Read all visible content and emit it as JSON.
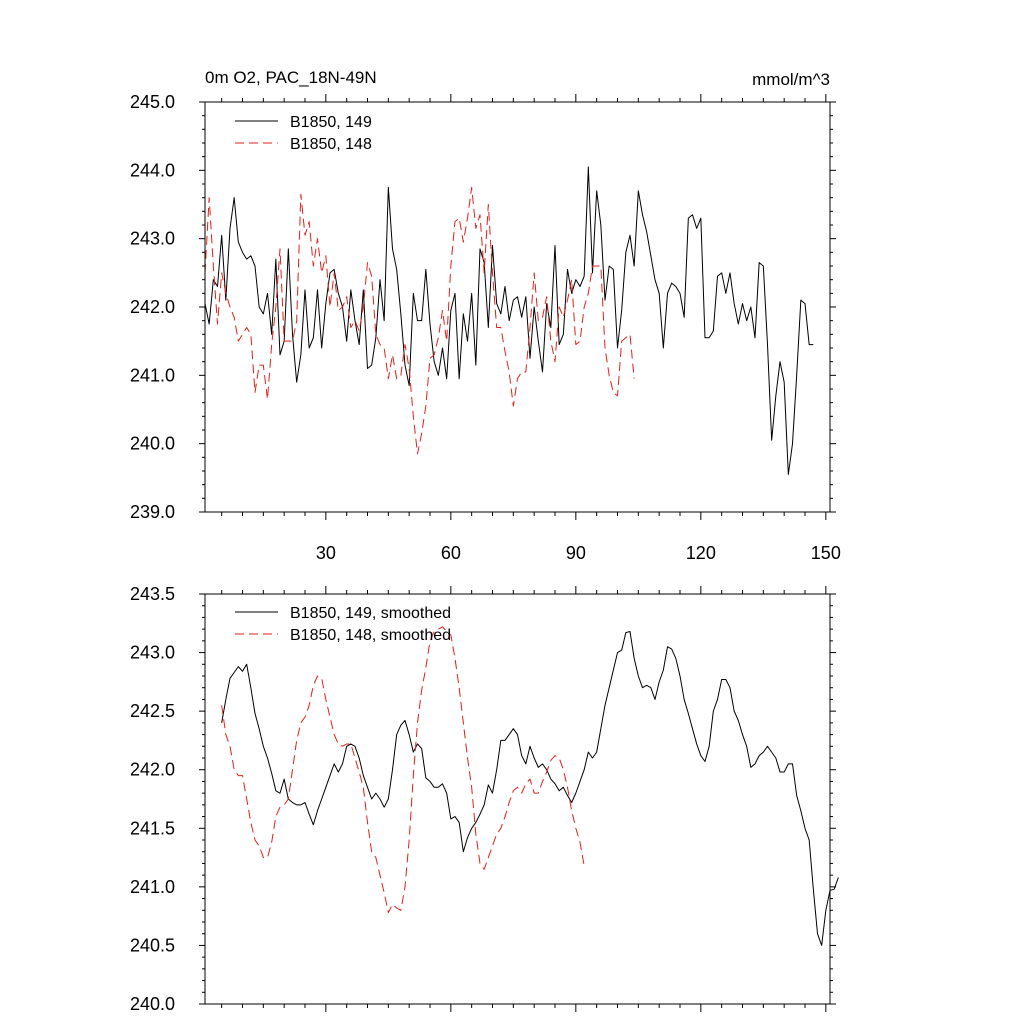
{
  "chart_data": [
    {
      "type": "line",
      "title_left": "0m O2, PAC_18N-49N",
      "title_right": "mmol/m^3",
      "xlim": [
        1,
        151
      ],
      "ylim": [
        239.0,
        245.0
      ],
      "xticks": [
        30,
        60,
        90,
        120,
        150
      ],
      "xtick_labels": [
        "30",
        "60",
        "90",
        "120",
        "150"
      ],
      "yticks": [
        239.0,
        240.0,
        241.0,
        242.0,
        243.0,
        244.0,
        245.0
      ],
      "ytick_labels": [
        "239.0",
        "240.0",
        "241.0",
        "242.0",
        "243.0",
        "244.0",
        "245.0"
      ],
      "legend": "top-left",
      "grid": false,
      "series": [
        {
          "name": "B1850, 149",
          "color": "#000000",
          "dash": "solid",
          "x_start": 1,
          "values": [
            242.05,
            241.75,
            242.4,
            242.3,
            243.05,
            242.1,
            243.15,
            243.6,
            242.95,
            242.8,
            242.7,
            242.75,
            242.6,
            242.0,
            241.9,
            242.2,
            241.6,
            242.7,
            241.3,
            241.5,
            242.85,
            241.6,
            240.9,
            241.3,
            242.25,
            241.4,
            241.55,
            242.25,
            241.4,
            242.05,
            242.5,
            242.55,
            242.2,
            242.0,
            241.5,
            242.25,
            241.8,
            241.45,
            242.25,
            241.1,
            241.15,
            241.55,
            242.4,
            241.8,
            243.75,
            242.85,
            242.55,
            241.9,
            241.15,
            240.85,
            242.2,
            241.8,
            241.8,
            242.55,
            241.75,
            241.2,
            241.0,
            241.4,
            240.95,
            241.95,
            242.2,
            240.95,
            241.9,
            241.5,
            242.2,
            241.15,
            242.85,
            242.65,
            241.7,
            242.9,
            242.05,
            241.9,
            242.3,
            241.8,
            242.1,
            242.15,
            241.85,
            242.15,
            241.25,
            242.0,
            241.5,
            241.05,
            242.05,
            241.7,
            242.9,
            241.45,
            241.6,
            242.55,
            242.2,
            242.4,
            242.3,
            242.45,
            244.05,
            242.5,
            243.7,
            243.2,
            242.1,
            242.6,
            242.55,
            241.4,
            241.95,
            242.8,
            243.05,
            242.6,
            243.7,
            243.35,
            243.1,
            242.75,
            242.4,
            242.2,
            241.4,
            242.2,
            242.35,
            242.3,
            242.2,
            241.85,
            243.3,
            243.35,
            243.15,
            243.3,
            241.55,
            241.55,
            241.65,
            242.45,
            242.5,
            242.2,
            242.5,
            242.05,
            241.75,
            242.05,
            241.8,
            242.0,
            241.55,
            242.65,
            242.6,
            241.45,
            240.05,
            240.7,
            241.2,
            240.9,
            239.55,
            240.0,
            241.0,
            242.1,
            242.05,
            241.45,
            241.45
          ]
        },
        {
          "name": "B1850, 148",
          "color": "#e0201c",
          "dash": "dashed",
          "x_start": 1,
          "values": [
            242.5,
            243.6,
            242.6,
            241.75,
            242.5,
            242.2,
            242.0,
            241.85,
            241.5,
            241.6,
            241.7,
            241.6,
            240.75,
            241.15,
            241.15,
            240.65,
            241.45,
            242.0,
            242.85,
            241.5,
            241.5,
            241.5,
            241.8,
            243.65,
            243.05,
            243.25,
            242.6,
            243.0,
            242.5,
            242.75,
            242.0,
            242.5,
            241.95,
            242.0,
            242.15,
            241.7,
            241.8,
            241.65,
            242.0,
            242.65,
            242.45,
            241.6,
            241.45,
            241.4,
            240.95,
            241.3,
            240.95,
            241.0,
            241.45,
            241.1,
            240.4,
            239.85,
            240.15,
            240.55,
            241.25,
            241.3,
            241.55,
            241.95,
            241.5,
            242.6,
            243.25,
            243.3,
            242.95,
            243.3,
            243.75,
            243.15,
            243.35,
            242.5,
            243.5,
            242.5,
            241.7,
            241.7,
            241.35,
            241.05,
            240.55,
            240.95,
            241.05,
            241.05,
            241.7,
            242.5,
            241.8,
            241.85,
            242.15,
            241.5,
            241.2,
            242.0,
            241.85,
            242.1,
            242.4,
            241.45,
            241.5,
            242.0,
            242.2,
            242.6,
            242.6,
            242.6,
            241.4,
            241.0,
            240.75,
            240.7,
            241.5,
            241.55,
            241.6,
            240.95
          ]
        }
      ]
    },
    {
      "type": "line",
      "xlim": [
        1,
        151
      ],
      "ylim": [
        240.0,
        243.5
      ],
      "xticks": [
        30,
        60,
        90,
        120,
        150
      ],
      "yticks": [
        240.0,
        240.5,
        241.0,
        241.5,
        242.0,
        242.5,
        243.0,
        243.5
      ],
      "ytick_labels": [
        "240.0",
        "240.5",
        "241.0",
        "241.5",
        "242.0",
        "242.5",
        "243.0",
        "243.5"
      ],
      "legend": "top-left",
      "grid": false,
      "series": [
        {
          "name": "B1850, 149, smoothed",
          "color": "#000000",
          "dash": "solid",
          "x_start": 5,
          "values": [
            242.4,
            242.6,
            242.78,
            242.83,
            242.88,
            242.84,
            242.9,
            242.7,
            242.48,
            242.35,
            242.2,
            242.1,
            241.97,
            241.82,
            241.8,
            241.92,
            241.75,
            241.72,
            241.7,
            241.7,
            241.72,
            241.62,
            241.53,
            241.65,
            241.75,
            241.85,
            241.95,
            242.05,
            241.98,
            242.05,
            242.2,
            242.22,
            242.2,
            242.1,
            241.95,
            241.85,
            241.75,
            241.8,
            241.75,
            241.68,
            241.75,
            242.0,
            242.3,
            242.38,
            242.42,
            242.3,
            242.15,
            242.22,
            242.18,
            241.93,
            241.9,
            241.85,
            241.85,
            241.88,
            241.8,
            241.58,
            241.6,
            241.55,
            241.3,
            241.42,
            241.5,
            241.55,
            241.62,
            241.7,
            241.87,
            241.8,
            242.0,
            242.25,
            242.25,
            242.3,
            242.35,
            242.3,
            242.12,
            242.05,
            242.2,
            242.1,
            242.02,
            242.05,
            242.0,
            241.92,
            241.88,
            241.82,
            241.85,
            241.78,
            241.72,
            241.8,
            241.9,
            242.0,
            242.15,
            242.1,
            242.15,
            242.35,
            242.55,
            242.7,
            242.85,
            243.0,
            243.02,
            243.17,
            243.18,
            242.95,
            242.8,
            242.7,
            242.72,
            242.7,
            242.6,
            242.75,
            242.85,
            243.05,
            243.03,
            242.95,
            242.8,
            242.6,
            242.48,
            242.35,
            242.22,
            242.12,
            242.07,
            242.2,
            242.5,
            242.6,
            242.77,
            242.77,
            242.7,
            242.5,
            242.42,
            242.3,
            242.2,
            242.02,
            242.05,
            242.12,
            242.15,
            242.2,
            242.15,
            242.1,
            241.98,
            241.98,
            242.05,
            242.05,
            241.78,
            241.65,
            241.5,
            241.4,
            240.98,
            240.6,
            240.5,
            240.8,
            240.97,
            240.98,
            241.08
          ]
        },
        {
          "name": "B1850, 148, smoothed",
          "color": "#e0201c",
          "dash": "dashed",
          "x_start": 5,
          "values": [
            242.55,
            242.3,
            242.2,
            242.0,
            241.95,
            241.95,
            241.75,
            241.55,
            241.4,
            241.35,
            241.25,
            241.25,
            241.38,
            241.6,
            241.68,
            241.7,
            241.75,
            242.0,
            242.25,
            242.4,
            242.45,
            242.55,
            242.72,
            242.8,
            242.78,
            242.6,
            242.45,
            242.3,
            242.22,
            242.2,
            242.22,
            242.22,
            242.1,
            241.98,
            241.85,
            241.55,
            241.3,
            241.25,
            241.1,
            240.95,
            240.78,
            240.85,
            240.82,
            240.8,
            241.0,
            241.4,
            241.95,
            242.4,
            242.68,
            242.87,
            243.1,
            243.18,
            243.2,
            243.22,
            243.18,
            243.15,
            242.95,
            242.7,
            242.4,
            242.1,
            241.85,
            241.45,
            241.2,
            241.15,
            241.25,
            241.35,
            241.45,
            241.5,
            241.6,
            241.72,
            241.82,
            241.85,
            241.8,
            241.88,
            241.92,
            241.8,
            241.8,
            241.9,
            241.98,
            242.08,
            242.12,
            242.1,
            242.0,
            241.85,
            241.65,
            241.5,
            241.38,
            241.18
          ]
        }
      ]
    }
  ]
}
